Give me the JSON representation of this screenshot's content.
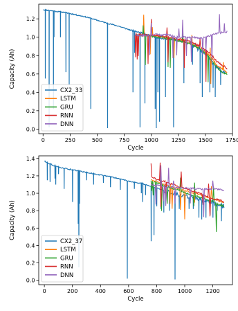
{
  "chart_data": [
    {
      "type": "line",
      "xlabel": "Cycle",
      "ylabel": "Capacity (Ah)",
      "xlim": [
        -40,
        1750
      ],
      "ylim": [
        -0.05,
        1.36
      ],
      "xticks": [
        0,
        250,
        500,
        750,
        1000,
        1250,
        1500,
        1750
      ],
      "yticks": [
        0.0,
        0.2,
        0.4,
        0.6,
        0.8,
        1.0,
        1.2
      ],
      "ytick_labels": [
        "0.0",
        "0.2",
        "0.4",
        "0.6",
        "0.8",
        "1.0",
        "1.2"
      ],
      "legend_position": "lower-left",
      "true_series": {
        "name": "CX2_33",
        "color": "#1f77b4",
        "points": [
          [
            0,
            1.3
          ],
          [
            100,
            1.285
          ],
          [
            200,
            1.27
          ],
          [
            300,
            1.245
          ],
          [
            400,
            1.22
          ],
          [
            500,
            1.185
          ],
          [
            600,
            1.15
          ],
          [
            700,
            1.12
          ],
          [
            800,
            1.08
          ],
          [
            900,
            1.05
          ],
          [
            1000,
            1.02
          ],
          [
            1050,
            0.99
          ],
          [
            1100,
            0.985
          ],
          [
            1200,
            0.97
          ],
          [
            1300,
            0.95
          ],
          [
            1350,
            0.93
          ],
          [
            1400,
            0.9
          ],
          [
            1450,
            0.87
          ],
          [
            1500,
            0.83
          ],
          [
            1530,
            0.78
          ],
          [
            1560,
            0.72
          ],
          [
            1580,
            0.69
          ],
          [
            1600,
            0.68
          ],
          [
            1650,
            0.63
          ],
          [
            1690,
            0.6
          ]
        ],
        "dips": [
          [
            20,
            0.55
          ],
          [
            55,
            0.02
          ],
          [
            95,
            0.22
          ],
          [
            100,
            1.0
          ],
          [
            160,
            1.0
          ],
          [
            210,
            0.62
          ],
          [
            240,
            0.48
          ],
          [
            440,
            0.22
          ],
          [
            595,
            0.01
          ],
          [
            830,
            0.4
          ],
          [
            845,
            0.83
          ],
          [
            895,
            0.02
          ],
          [
            940,
            0.28
          ],
          [
            1035,
            0.22
          ],
          [
            1045,
            0.01
          ],
          [
            1060,
            0.4
          ],
          [
            1075,
            0.08
          ],
          [
            1130,
            0.35
          ],
          [
            1205,
            0.02
          ],
          [
            1300,
            0.5
          ],
          [
            1380,
            0.7
          ],
          [
            1450,
            0.5
          ],
          [
            1470,
            0.35
          ],
          [
            1540,
            0.4
          ],
          [
            1570,
            0.45
          ],
          [
            1590,
            0.35
          ],
          [
            1640,
            0.48
          ]
        ]
      },
      "prediction_start": 850,
      "prediction_end": 1700,
      "series": [
        {
          "name": "LSTM",
          "color": "#ff7f0e",
          "values": [
            [
              850,
              1.02
            ],
            [
              950,
              1.02
            ],
            [
              1050,
              1.01
            ],
            [
              1100,
              1.0
            ],
            [
              1150,
              0.99
            ],
            [
              1200,
              0.98
            ],
            [
              1250,
              0.97
            ],
            [
              1300,
              0.96
            ],
            [
              1350,
              0.94
            ],
            [
              1400,
              0.91
            ],
            [
              1450,
              0.88
            ],
            [
              1500,
              0.84
            ],
            [
              1540,
              0.8
            ],
            [
              1570,
              0.76
            ],
            [
              1600,
              0.7
            ],
            [
              1650,
              0.66
            ],
            [
              1700,
              0.62
            ]
          ]
        },
        {
          "name": "GRU",
          "color": "#2ca02c",
          "values": [
            [
              850,
              1.02
            ],
            [
              950,
              1.02
            ],
            [
              1050,
              1.0
            ],
            [
              1100,
              1.0
            ],
            [
              1150,
              0.99
            ],
            [
              1200,
              0.98
            ],
            [
              1250,
              0.96
            ],
            [
              1300,
              0.95
            ],
            [
              1350,
              0.93
            ],
            [
              1400,
              0.9
            ],
            [
              1450,
              0.87
            ],
            [
              1500,
              0.82
            ],
            [
              1540,
              0.78
            ],
            [
              1570,
              0.73
            ],
            [
              1600,
              0.68
            ],
            [
              1650,
              0.62
            ],
            [
              1700,
              0.6
            ]
          ]
        },
        {
          "name": "RNN",
          "color": "#d62728",
          "values": [
            [
              850,
              1.03
            ],
            [
              950,
              1.03
            ],
            [
              1050,
              1.02
            ],
            [
              1100,
              1.01
            ],
            [
              1150,
              1.0
            ],
            [
              1200,
              0.99
            ],
            [
              1250,
              0.98
            ],
            [
              1300,
              0.97
            ],
            [
              1350,
              0.96
            ],
            [
              1400,
              0.93
            ],
            [
              1450,
              0.9
            ],
            [
              1500,
              0.86
            ],
            [
              1540,
              0.83
            ],
            [
              1570,
              0.79
            ],
            [
              1600,
              0.74
            ],
            [
              1650,
              0.7
            ],
            [
              1700,
              0.66
            ]
          ]
        },
        {
          "name": "DNN",
          "color": "#9467bd",
          "values": [
            [
              850,
              1.02
            ],
            [
              950,
              1.02
            ],
            [
              1050,
              1.03
            ],
            [
              1100,
              1.02
            ],
            [
              1150,
              1.03
            ],
            [
              1200,
              1.01
            ],
            [
              1250,
              1.0
            ],
            [
              1300,
              1.0
            ],
            [
              1350,
              1.0
            ],
            [
              1400,
              1.0
            ],
            [
              1450,
              0.99
            ],
            [
              1500,
              1.0
            ],
            [
              1550,
              1.02
            ],
            [
              1600,
              1.04
            ],
            [
              1650,
              1.05
            ],
            [
              1700,
              1.06
            ]
          ]
        }
      ]
    },
    {
      "type": "line",
      "xlabel": "Cycle",
      "ylabel": "Capacity (Ah)",
      "xlim": [
        -40,
        1340
      ],
      "ylim": [
        -0.05,
        1.43
      ],
      "xticks": [
        0,
        200,
        400,
        600,
        800,
        1000,
        1200
      ],
      "yticks": [
        0.0,
        0.2,
        0.4,
        0.6,
        0.8,
        1.0,
        1.2,
        1.4
      ],
      "ytick_labels": [
        "0.0",
        "0.2",
        "0.4",
        "0.6",
        "0.8",
        "1.0",
        "1.2",
        "1.4"
      ],
      "legend_position": "lower-left",
      "true_series": {
        "name": "CX2_37",
        "color": "#1f77b4",
        "points": [
          [
            0,
            1.37
          ],
          [
            50,
            1.33
          ],
          [
            100,
            1.3
          ],
          [
            200,
            1.27
          ],
          [
            300,
            1.24
          ],
          [
            400,
            1.21
          ],
          [
            500,
            1.18
          ],
          [
            600,
            1.14
          ],
          [
            700,
            1.11
          ],
          [
            760,
            1.08
          ],
          [
            800,
            1.06
          ],
          [
            850,
            1.03
          ],
          [
            900,
            1.01
          ],
          [
            950,
            0.99
          ],
          [
            1000,
            0.97
          ],
          [
            1050,
            0.95
          ],
          [
            1100,
            0.93
          ],
          [
            1150,
            0.91
          ],
          [
            1200,
            0.89
          ],
          [
            1250,
            0.87
          ],
          [
            1280,
            0.85
          ]
        ]
      },
      "dips_info": "sharp downward spikes",
      "dips2": null,
      "prediction_start": 760,
      "prediction_end": 1280,
      "series": [
        {
          "name": "LSTM",
          "color": "#ff7f0e",
          "values": [
            [
              760,
              1.16
            ],
            [
              800,
              1.13
            ],
            [
              850,
              1.1
            ],
            [
              900,
              1.08
            ],
            [
              950,
              1.06
            ],
            [
              1000,
              1.03
            ],
            [
              1050,
              1.01
            ],
            [
              1100,
              0.99
            ],
            [
              1150,
              0.96
            ],
            [
              1200,
              0.93
            ],
            [
              1250,
              0.91
            ],
            [
              1280,
              0.89
            ]
          ]
        },
        {
          "name": "GRU",
          "color": "#2ca02c",
          "values": [
            [
              760,
              1.15
            ],
            [
              800,
              1.12
            ],
            [
              850,
              1.09
            ],
            [
              900,
              1.06
            ],
            [
              950,
              1.04
            ],
            [
              1000,
              1.01
            ],
            [
              1050,
              0.98
            ],
            [
              1100,
              0.96
            ],
            [
              1150,
              0.93
            ],
            [
              1200,
              0.9
            ],
            [
              1250,
              0.87
            ],
            [
              1280,
              0.85
            ]
          ]
        },
        {
          "name": "RNN",
          "color": "#d62728",
          "values": [
            [
              760,
              1.19
            ],
            [
              800,
              1.16
            ],
            [
              850,
              1.14
            ],
            [
              900,
              1.11
            ],
            [
              950,
              1.08
            ],
            [
              1000,
              1.06
            ],
            [
              1050,
              1.03
            ],
            [
              1100,
              1.0
            ],
            [
              1150,
              0.97
            ],
            [
              1200,
              0.94
            ],
            [
              1250,
              0.92
            ],
            [
              1280,
              0.9
            ]
          ]
        },
        {
          "name": "DNN",
          "color": "#9467bd",
          "values": [
            [
              760,
              1.1
            ],
            [
              800,
              1.09
            ],
            [
              850,
              1.08
            ],
            [
              900,
              1.07
            ],
            [
              950,
              1.07
            ],
            [
              1000,
              1.06
            ],
            [
              1050,
              1.06
            ],
            [
              1100,
              1.05
            ],
            [
              1150,
              1.05
            ],
            [
              1200,
              1.05
            ],
            [
              1250,
              1.04
            ],
            [
              1280,
              1.04
            ]
          ]
        }
      ]
    }
  ]
}
